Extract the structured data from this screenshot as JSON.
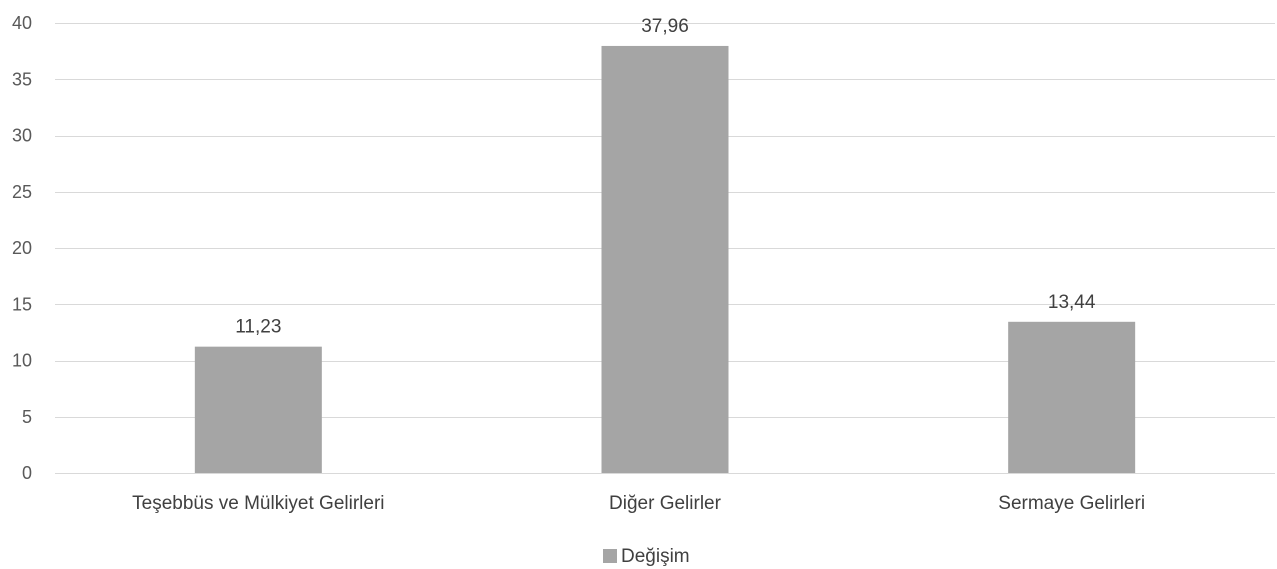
{
  "chart_data": {
    "type": "bar",
    "categories": [
      "Teşebbüs ve Mülkiyet Gelirleri",
      "Diğer Gelirler",
      "Sermaye Gelirleri"
    ],
    "series": [
      {
        "name": "Değişim",
        "values": [
          11.23,
          37.96,
          13.44
        ],
        "labels": [
          "11,23",
          "37,96",
          "13,44"
        ],
        "color": "#a5a5a5"
      }
    ],
    "ylim": [
      0,
      40
    ],
    "yticks": [
      0,
      5,
      10,
      15,
      20,
      25,
      30,
      35,
      40
    ],
    "grid": true,
    "legend": "bottom"
  }
}
